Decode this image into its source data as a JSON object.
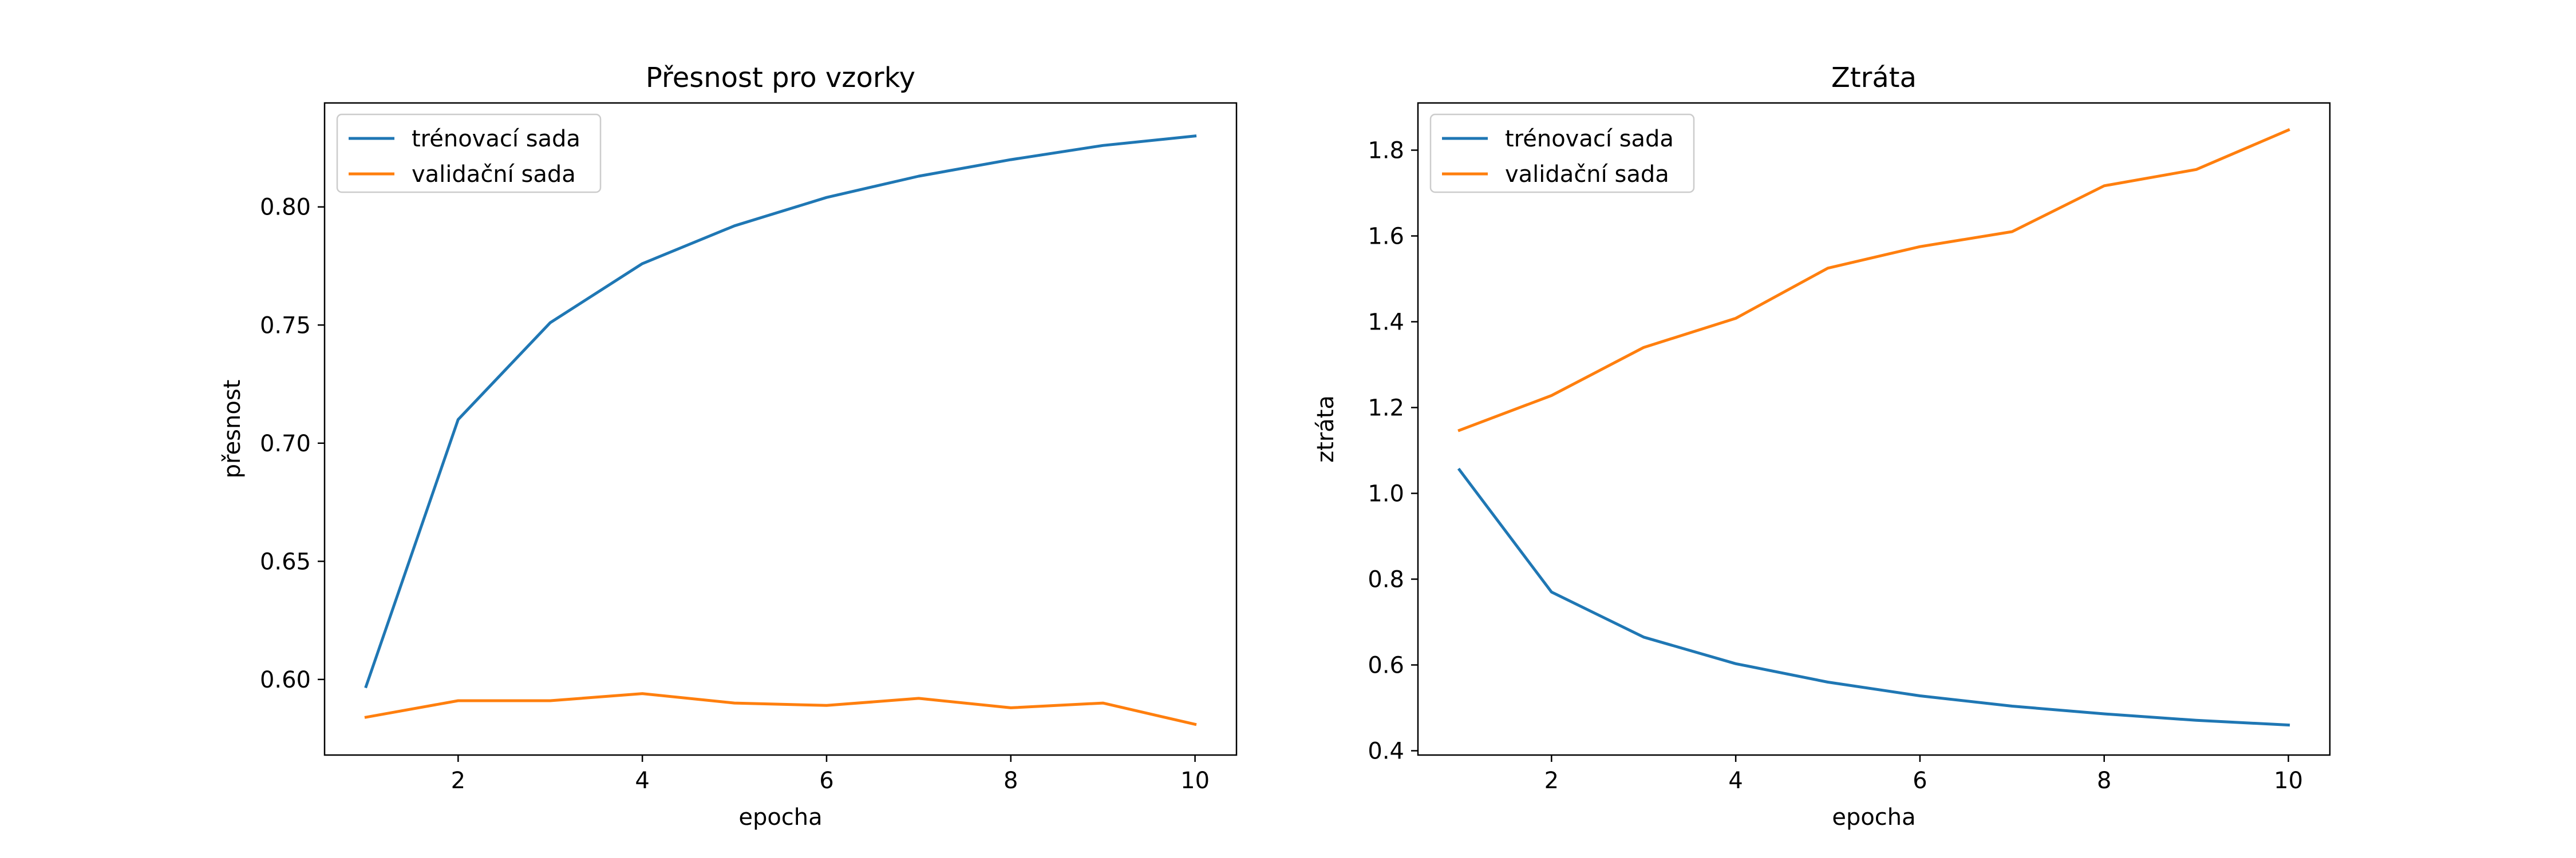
{
  "colors": {
    "train": "#1f77b4",
    "validation": "#ff7f0e",
    "legend_border": "#cccccc"
  },
  "chart_data": [
    {
      "type": "line",
      "title": "Přesnost pro vzorky",
      "xlabel": "epocha",
      "ylabel": "přesnost",
      "xlim": [
        0.55,
        10.45
      ],
      "ylim": [
        0.568,
        0.844
      ],
      "xticks": [
        2,
        4,
        6,
        8,
        10
      ],
      "yticks": [
        0.6,
        0.65,
        0.7,
        0.75,
        0.8
      ],
      "ytick_labels": [
        "0.60",
        "0.65",
        "0.70",
        "0.75",
        "0.80"
      ],
      "grid": false,
      "legend": "top-left",
      "x": [
        1,
        2,
        3,
        4,
        5,
        6,
        7,
        8,
        9,
        10
      ],
      "series": [
        {
          "name": "trénovací sada",
          "color_key": "train",
          "values": [
            0.597,
            0.71,
            0.751,
            0.776,
            0.792,
            0.804,
            0.813,
            0.82,
            0.826,
            0.83
          ]
        },
        {
          "name": "validační sada",
          "color_key": "validation",
          "values": [
            0.584,
            0.591,
            0.591,
            0.594,
            0.59,
            0.589,
            0.592,
            0.588,
            0.59,
            0.581
          ]
        }
      ]
    },
    {
      "type": "line",
      "title": "Ztráta",
      "xlabel": "epocha",
      "ylabel": "ztráta",
      "xlim": [
        0.55,
        10.45
      ],
      "ylim": [
        0.39,
        1.91
      ],
      "xticks": [
        2,
        4,
        6,
        8,
        10
      ],
      "yticks": [
        0.4,
        0.6,
        0.8,
        1.0,
        1.2,
        1.4,
        1.6,
        1.8
      ],
      "ytick_labels": [
        "0.4",
        "0.6",
        "0.8",
        "1.0",
        "1.2",
        "1.4",
        "1.6",
        "1.8"
      ],
      "grid": false,
      "legend": "top-left",
      "x": [
        1,
        2,
        3,
        4,
        5,
        6,
        7,
        8,
        9,
        10
      ],
      "series": [
        {
          "name": "trénovací sada",
          "color_key": "train",
          "values": [
            1.055,
            0.77,
            0.665,
            0.603,
            0.56,
            0.528,
            0.504,
            0.486,
            0.471,
            0.46
          ]
        },
        {
          "name": "validační sada",
          "color_key": "validation",
          "values": [
            1.147,
            1.228,
            1.34,
            1.408,
            1.525,
            1.575,
            1.61,
            1.717,
            1.755,
            1.847
          ]
        }
      ]
    }
  ]
}
